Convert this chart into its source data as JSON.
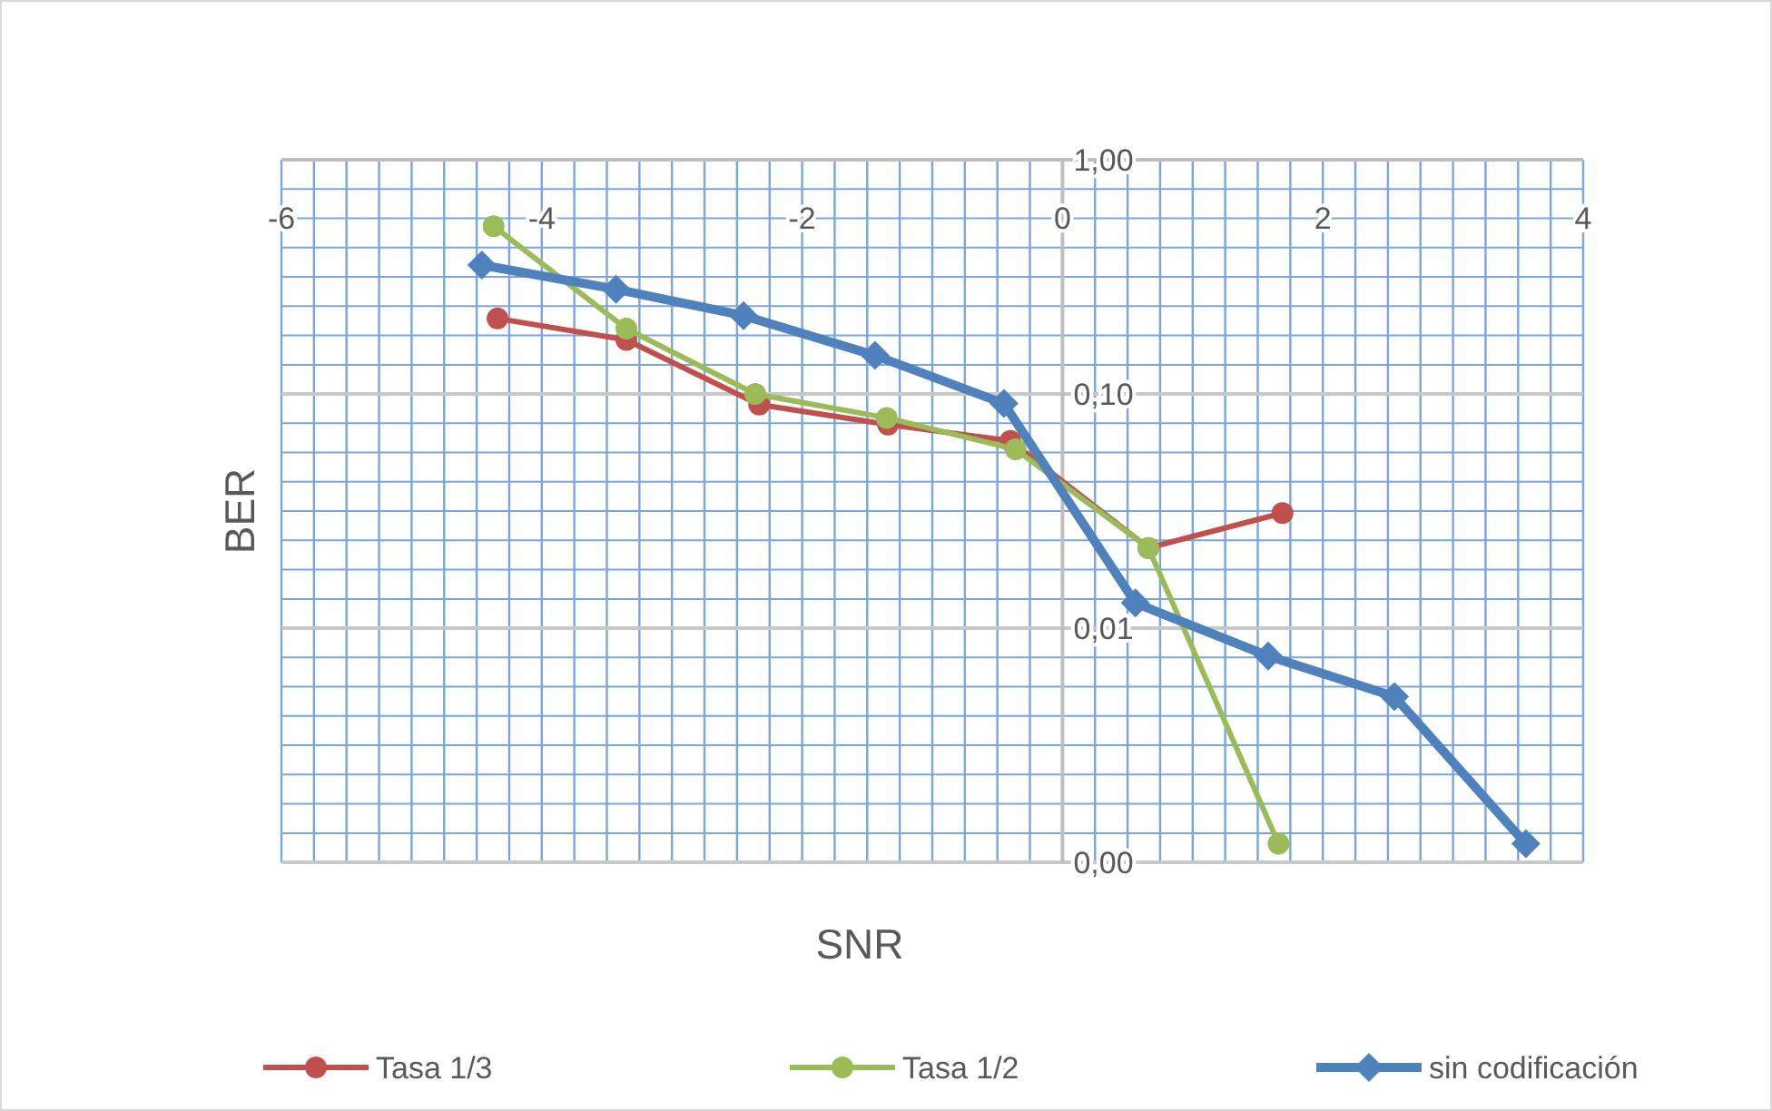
{
  "chart_data": {
    "type": "line",
    "xlabel": "SNR",
    "ylabel": "BER",
    "log": "y",
    "grid": true,
    "legend": "bottom",
    "marker": "circle",
    "line_style": "solid",
    "xlim": [
      -6,
      4
    ],
    "xticks": [
      -6,
      {
        "value": -5.75,
        "label": null
      },
      {
        "value": -5.5,
        "label": null
      },
      {
        "value": -5.25,
        "label": null
      },
      {
        "value": -5,
        "label": null
      },
      {
        "value": -4.75,
        "label": null
      },
      {
        "value": -4.5,
        "label": null
      },
      {
        "value": -4.25,
        "label": null
      },
      -4,
      {
        "value": -3.75,
        "label": null
      },
      {
        "value": -3.5,
        "label": null
      },
      {
        "value": -3.25,
        "label": null
      },
      {
        "value": -3,
        "label": null
      },
      {
        "value": -2.75,
        "label": null
      },
      {
        "value": -2.5,
        "label": null
      },
      {
        "value": -2.25,
        "label": null
      },
      -2,
      {
        "value": -1.75,
        "label": null
      },
      {
        "value": -1.5,
        "label": null
      },
      {
        "value": -1.25,
        "label": null
      },
      {
        "value": -1,
        "label": null
      },
      {
        "value": -0.75,
        "label": null
      },
      {
        "value": -0.5,
        "label": null
      },
      {
        "value": -0.25,
        "label": null
      },
      0,
      {
        "value": 0.25,
        "label": null
      },
      {
        "value": 0.5,
        "label": null
      },
      {
        "value": 0.75,
        "label": null
      },
      {
        "value": 1,
        "label": null
      },
      {
        "value": 1.25,
        "label": null
      },
      {
        "value": 1.5,
        "label": null
      },
      {
        "value": 1.75,
        "label": null
      },
      2,
      {
        "value": 2.25,
        "label": null
      },
      {
        "value": 2.5,
        "label": null
      },
      {
        "value": 2.75,
        "label": null
      },
      {
        "value": 3,
        "label": null
      },
      {
        "value": 3.25,
        "label": null
      },
      {
        "value": 3.5,
        "label": null
      },
      {
        "value": 3.75,
        "label": null
      },
      4
    ],
    "ylim": [
      0.001,
      1
    ],
    "yticks": [
      {
        "value": 1,
        "label": "1,00"
      },
      {
        "value": 0.75,
        "label": null
      },
      {
        "value": 0.562,
        "label": null
      },
      {
        "value": 0.422,
        "label": null
      },
      {
        "value": 0.316,
        "label": null
      },
      {
        "value": 0.237,
        "label": null
      },
      {
        "value": 0.178,
        "label": null
      },
      {
        "value": 0.133,
        "label": null
      },
      {
        "value": 0.1,
        "label": "0,10"
      },
      {
        "value": 0.075,
        "label": null
      },
      {
        "value": 0.0562,
        "label": null
      },
      {
        "value": 0.0422,
        "label": null
      },
      {
        "value": 0.0316,
        "label": null
      },
      {
        "value": 0.0237,
        "label": null
      },
      {
        "value": 0.0178,
        "label": null
      },
      {
        "value": 0.0133,
        "label": null
      },
      {
        "value": 0.01,
        "label": "0,01"
      },
      {
        "value": 0.0075,
        "label": null
      },
      {
        "value": 0.00562,
        "label": null
      },
      {
        "value": 0.00422,
        "label": null
      },
      {
        "value": 0.00316,
        "label": null
      },
      {
        "value": 0.00237,
        "label": null
      },
      {
        "value": 0.00178,
        "label": null
      },
      {
        "value": 0.00133,
        "label": null
      },
      {
        "value": 0.001,
        "label": "0,00"
      }
    ],
    "series": [
      {
        "name": "Tasa 1/3",
        "color": "#c0504d",
        "marker": "circle",
        "x": [
          -4.34,
          -3.35,
          -2.33,
          -1.34,
          -0.4,
          0.66,
          1.69
        ],
        "values": [
          0.21,
          0.17,
          0.09,
          0.074,
          0.063,
          0.022,
          0.031
        ]
      },
      {
        "name": "Tasa 1/2",
        "color": "#9bbb59",
        "marker": "circle",
        "x": [
          -4.37,
          -3.35,
          -2.36,
          -1.35,
          -0.36,
          0.66,
          1.66
        ],
        "values": [
          0.52,
          0.19,
          0.1,
          0.079,
          0.058,
          0.022,
          0.0012
        ]
      },
      {
        "name": "sin codificación",
        "color": "#4f81bd",
        "marker": "diamond",
        "x": [
          -4.46,
          -3.43,
          -2.45,
          -1.44,
          -0.45,
          0.56,
          1.58,
          2.55,
          3.56
        ],
        "values": [
          0.355,
          0.28,
          0.216,
          0.146,
          0.091,
          0.0128,
          0.0076,
          0.0051,
          0.0012
        ]
      }
    ]
  }
}
